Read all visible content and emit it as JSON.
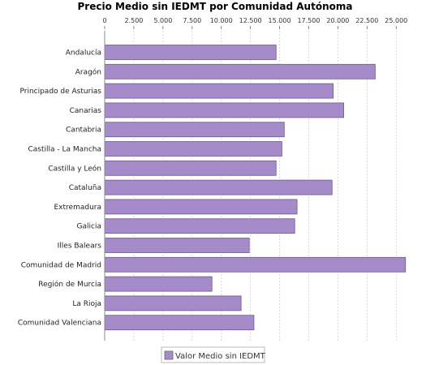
{
  "chart_data": {
    "type": "bar",
    "orientation": "horizontal",
    "title": "Precio Medio sin IEDMT por Comunidad Autónoma",
    "xlabel": "",
    "ylabel": "",
    "xlim": [
      0,
      27000
    ],
    "ticks": [
      0,
      2500,
      5000,
      7500,
      10000,
      12500,
      15000,
      17500,
      20000,
      22500,
      25000
    ],
    "tick_labels": [
      "0",
      "2.500",
      "5.000",
      "7.500",
      "10.000",
      "12.500",
      "15.000",
      "17.500",
      "20.000",
      "22.500",
      "25.000"
    ],
    "tick_axis_position": "top",
    "grid": true,
    "legend_position": "bottom-center",
    "bar_color": "#a58bc9",
    "categories": [
      "Andalucía",
      "Aragón",
      "Principado de Asturias",
      "Canarias",
      "Cantabria",
      "Castilla - La Mancha",
      "Castilla y León",
      "Cataluña",
      "Extremadura",
      "Galicia",
      "Illes Balears",
      "Comunidad de Madrid",
      "Región de Murcia",
      "La Rioja",
      "Comunidad Valenciana"
    ],
    "series": [
      {
        "name": "Valor Medio sin IEDMT",
        "values": [
          14700,
          23200,
          19600,
          20500,
          15400,
          15200,
          14700,
          19500,
          16500,
          16300,
          12400,
          25800,
          9200,
          11700,
          12800
        ]
      }
    ]
  }
}
